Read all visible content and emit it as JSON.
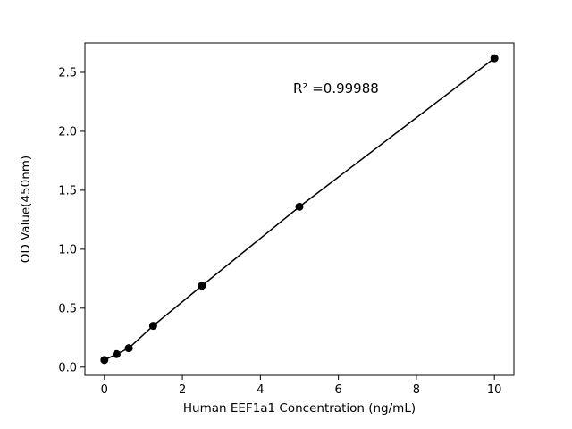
{
  "chart_data": {
    "type": "scatter",
    "title": "",
    "xlabel": "Human EEF1a1 Concentration (ng/mL)",
    "ylabel": "OD Value(450nm)",
    "annotation": "R² =0.99988",
    "x": [
      0,
      0.3125,
      0.625,
      1.25,
      2.5,
      5,
      10
    ],
    "y": [
      0.06,
      0.11,
      0.16,
      0.35,
      0.69,
      1.36,
      2.62
    ],
    "xlim": [
      -0.5,
      10.5
    ],
    "ylim": [
      -0.07,
      2.75
    ],
    "xticks": [
      0,
      2,
      4,
      6,
      8,
      10
    ],
    "yticks": [
      0.0,
      0.5,
      1.0,
      1.5,
      2.0,
      2.5
    ],
    "grid": false,
    "legend": "none",
    "marker_color": "#000000",
    "line_color": "#000000",
    "axis_color": "#000000"
  }
}
